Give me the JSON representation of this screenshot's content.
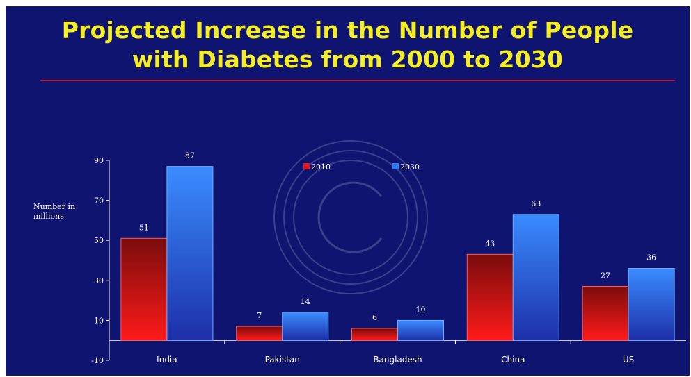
{
  "colors": {
    "background": "#0f1470",
    "title": "#f5ee24",
    "rule": "#c0182c",
    "series_2010": "#e0141a",
    "series_2030": "#2f78ef"
  },
  "chart_data": {
    "type": "bar",
    "title": "Projected Increase in the Number of People with Diabetes from 2000 to 2030",
    "title_lines": [
      "Projected Increase in the Number of People",
      "with Diabetes from 2000 to 2030"
    ],
    "ylabel": "Number in millions",
    "ylabel_lines": [
      "Number in",
      "millions"
    ],
    "xlabel": "",
    "categories": [
      "India",
      "Pakistan",
      "Bangladesh",
      "China",
      "US"
    ],
    "series": [
      {
        "name": "2010",
        "values": [
          51,
          7,
          6,
          43,
          27
        ]
      },
      {
        "name": "2030",
        "values": [
          87,
          14,
          10,
          63,
          36
        ]
      }
    ],
    "ylim": [
      -10,
      90
    ],
    "yticks": [
      90,
      70,
      50,
      30,
      10,
      -10
    ],
    "ytick_labels": [
      "90",
      "70",
      "50",
      "30",
      "10",
      "-10"
    ],
    "legend": "top-center",
    "grid": false
  }
}
